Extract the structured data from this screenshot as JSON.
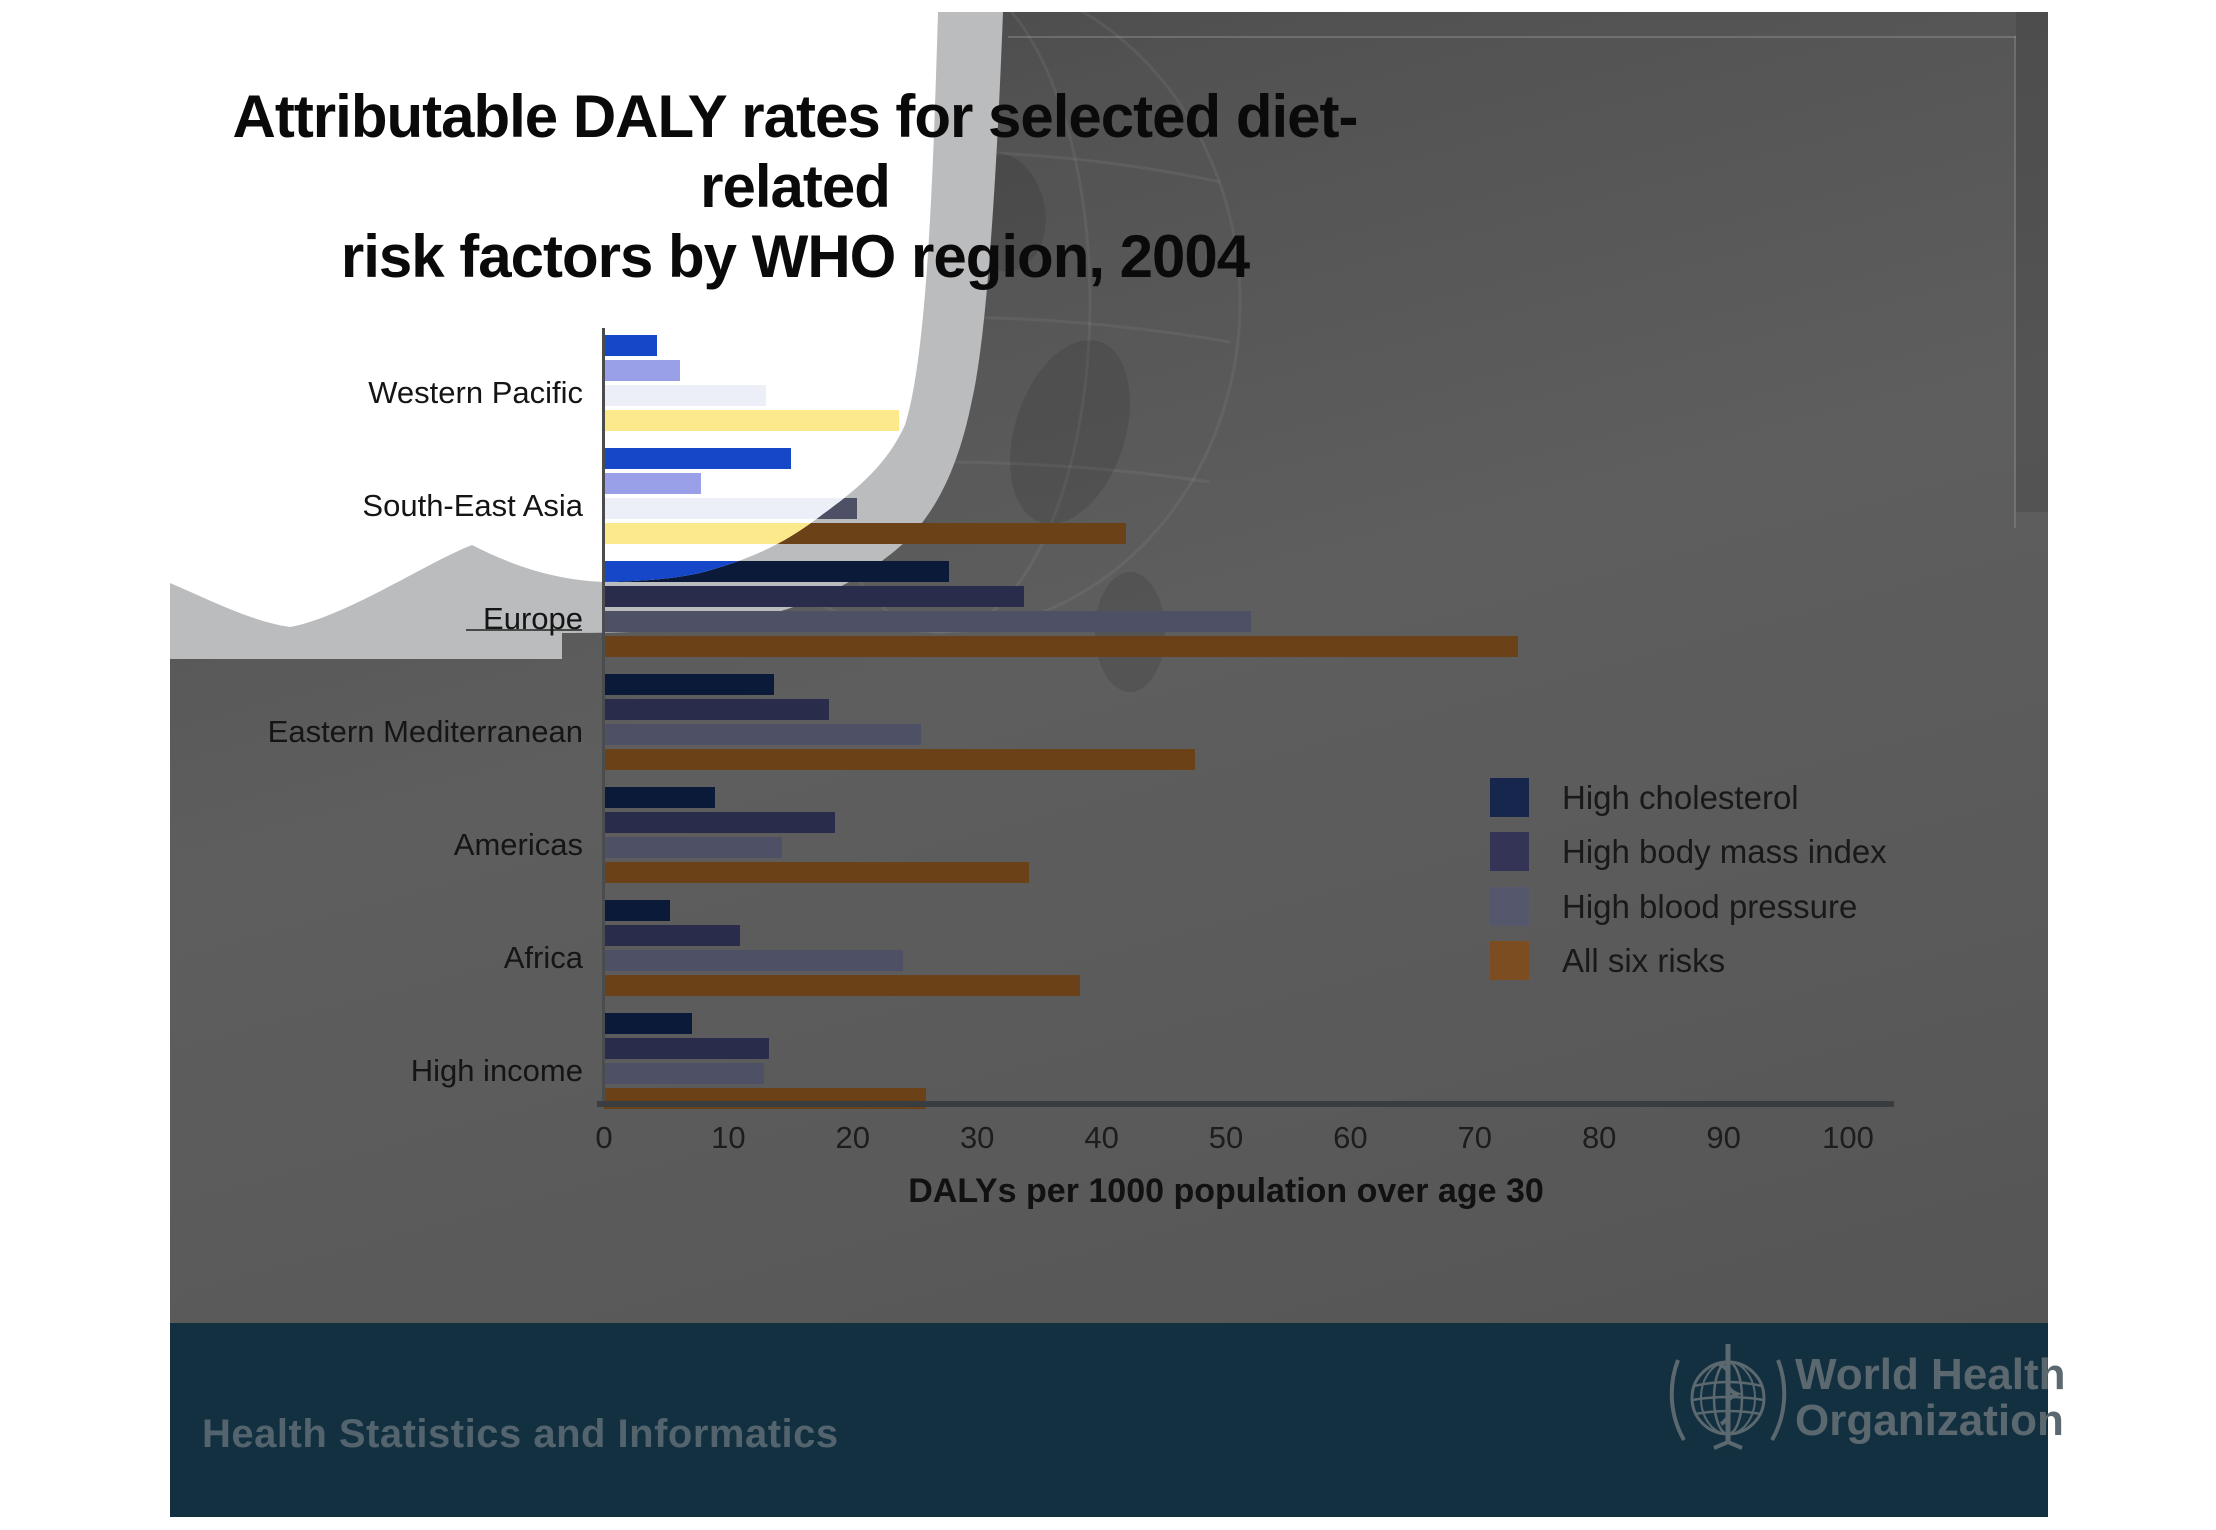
{
  "title": {
    "line1": "Attributable DALY rates for selected diet-related",
    "line2": "risk factors by WHO region, 2004"
  },
  "chart_data": {
    "type": "bar",
    "orientation": "horizontal",
    "categories": [
      "Western Pacific",
      "South-East Asia",
      "Europe",
      "Eastern Mediterranean",
      "Americas",
      "Africa",
      "High income"
    ],
    "series": [
      {
        "name": "High cholesterol",
        "values": [
          4.3,
          15.0,
          27.7,
          13.7,
          8.9,
          5.3,
          7.1
        ]
      },
      {
        "name": "High body mass index",
        "values": [
          6.1,
          7.8,
          33.8,
          18.1,
          18.6,
          10.9,
          13.3
        ]
      },
      {
        "name": "High blood pressure",
        "values": [
          13.0,
          20.3,
          52.0,
          25.5,
          14.3,
          24.0,
          12.9
        ]
      },
      {
        "name": "All six risks",
        "values": [
          23.7,
          42.0,
          73.5,
          47.5,
          34.2,
          38.3,
          25.9
        ]
      }
    ],
    "xlabel": "DALYs per 1000 population over age 30",
    "xticks": [
      0,
      10,
      20,
      30,
      40,
      50,
      60,
      70,
      80,
      90,
      100
    ],
    "xlim": [
      0,
      103
    ],
    "grid": false,
    "legend_position": "middle-right"
  },
  "legend": {
    "items": [
      "High cholesterol",
      "High body mass index",
      "High blood pressure",
      "All six risks"
    ]
  },
  "footer": {
    "department": "Health Statistics and Informatics",
    "org_line1": "World Health",
    "org_line2": "Organization"
  },
  "colors": {
    "bright": {
      "cholesterol": "#1747c9",
      "bmi": "#9aa0e8",
      "bp": "#edeff8",
      "six": "#fbe98c"
    },
    "dim": {
      "cholesterol": "#0a1a38",
      "bmi": "#292c4a",
      "bp": "#4e5165",
      "six": "#6b4118"
    },
    "legend_swatches": {
      "cholesterol": "#17264d",
      "bmi": "#333456",
      "bp": "#55576c",
      "six": "#7b4d21"
    },
    "backdrop_gray": "#5a5a5a",
    "reveal_band_gray": "#bbbcbe",
    "footer_background": "#12303f",
    "footer_text": "#57656e",
    "axis_line": "#3a3d3f"
  }
}
